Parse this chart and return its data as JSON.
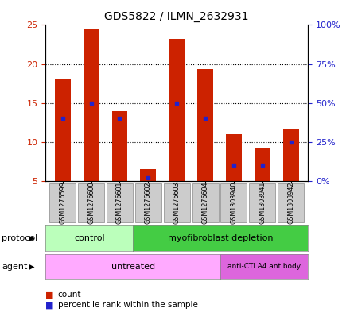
{
  "title": "GDS5822 / ILMN_2632931",
  "samples": [
    "GSM1276599",
    "GSM1276600",
    "GSM1276601",
    "GSM1276602",
    "GSM1276603",
    "GSM1276604",
    "GSM1303940",
    "GSM1303941",
    "GSM1303942"
  ],
  "counts": [
    18.0,
    24.5,
    14.0,
    6.5,
    23.2,
    19.3,
    11.0,
    9.2,
    11.7
  ],
  "percentile_ranks": [
    40.0,
    50.0,
    40.0,
    2.0,
    50.0,
    40.0,
    10.0,
    10.0,
    25.0
  ],
  "y_min": 5,
  "y_max": 25,
  "y_ticks_left": [
    5,
    10,
    15,
    20,
    25
  ],
  "y_ticks_right": [
    0,
    25,
    50,
    75,
    100
  ],
  "protocol_ctrl_n": 3,
  "protocol_myo_n": 6,
  "agent_untr_n": 6,
  "agent_anti_n": 3,
  "protocol_ctrl_color": "#bbffbb",
  "protocol_myo_color": "#44cc44",
  "agent_untr_color": "#ffaaff",
  "agent_anti_color": "#dd66dd",
  "bar_color": "#cc2200",
  "percentile_color": "#2222cc",
  "bar_width": 0.55,
  "grid_color": "black",
  "left_tick_color": "#cc2200",
  "right_tick_color": "#2222cc",
  "sample_box_color": "#cccccc",
  "title_fontsize": 10,
  "tick_fontsize": 8,
  "label_fontsize": 8,
  "legend_fontsize": 7.5
}
